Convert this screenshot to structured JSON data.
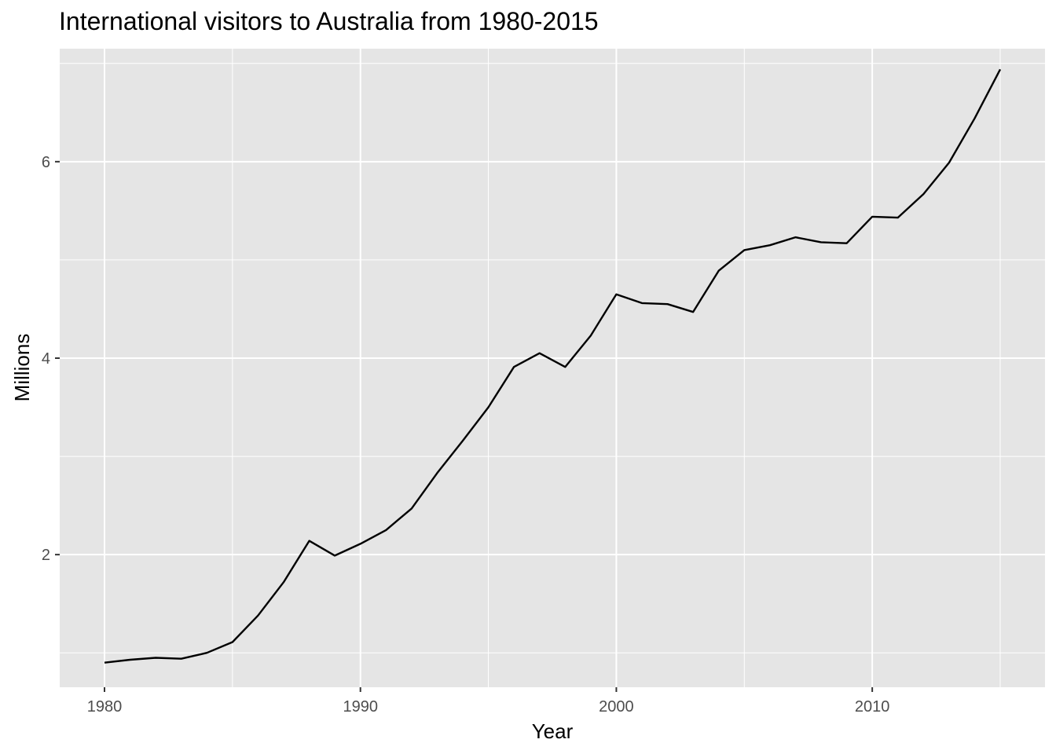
{
  "chart_data": {
    "type": "line",
    "title": "International visitors to Australia from 1980-2015",
    "xlabel": "Year",
    "ylabel": "Millions",
    "xlim": [
      1978.25,
      2016.75
    ],
    "ylim": [
      0.65,
      7.15
    ],
    "x_ticks": [
      1980,
      1990,
      2000,
      2010
    ],
    "x_tick_labels": [
      "1980",
      "1990",
      "2000",
      "2010"
    ],
    "x_minor_ticks": [
      1985,
      1995,
      2005,
      2015
    ],
    "y_ticks": [
      2,
      4,
      6
    ],
    "y_tick_labels": [
      "2",
      "4",
      "6"
    ],
    "y_minor_ticks": [
      1,
      3,
      5,
      7
    ],
    "grid": true,
    "legend": "none",
    "colors": {
      "panel": "#e5e5e5",
      "grid": "#ffffff",
      "line": "#000000",
      "tick_text": "#4d4d4d"
    },
    "series": [
      {
        "x": [
          1980,
          1981,
          1982,
          1983,
          1984,
          1985,
          1986,
          1987,
          1988,
          1989,
          1990,
          1991,
          1992,
          1993,
          1994,
          1995,
          1996,
          1997,
          1998,
          1999,
          2000,
          2001,
          2002,
          2003,
          2004,
          2005,
          2006,
          2007,
          2008,
          2009,
          2010,
          2011,
          2012,
          2013,
          2014,
          2015
        ],
        "values": [
          0.9,
          0.93,
          0.95,
          0.94,
          1.0,
          1.11,
          1.38,
          1.72,
          2.14,
          1.99,
          2.11,
          2.25,
          2.47,
          2.83,
          3.16,
          3.5,
          3.91,
          4.05,
          3.91,
          4.23,
          4.65,
          4.56,
          4.55,
          4.47,
          4.89,
          5.1,
          5.15,
          5.23,
          5.18,
          5.17,
          5.44,
          5.43,
          5.67,
          5.99,
          6.44,
          6.94
        ]
      }
    ]
  }
}
